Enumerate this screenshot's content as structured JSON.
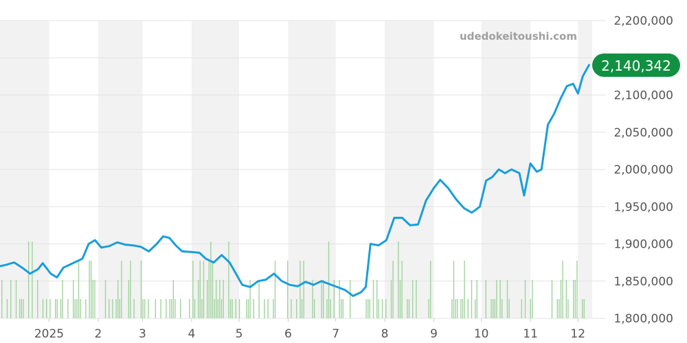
{
  "watermark": "udedokeitoushi.com",
  "colors": {
    "line": "#199ed9",
    "volume": "#9fd39c",
    "band": "#f2f2f2",
    "grid": "#e3e3e3",
    "badge": "#129042"
  },
  "chart_data": {
    "type": "line",
    "y_axis": {
      "range": [
        1800000,
        2200000
      ],
      "ticks": [
        1800000,
        1850000,
        1900000,
        1950000,
        2000000,
        2050000,
        2100000,
        2150000,
        2200000
      ],
      "tick_labels": [
        "1,800,000",
        "1,850,000",
        "1,900,000",
        "1,950,000",
        "2,000,000",
        "2,050,000",
        "2,100,000",
        "2,150,000",
        "2,200,000"
      ],
      "position": "right"
    },
    "x_axis": {
      "range": [
        "2024-12-01",
        "2025-12-10"
      ],
      "ticks": [
        "2025-01-01",
        "2025-02-01",
        "2025-03-01",
        "2025-04-01",
        "2025-05-01",
        "2025-06-01",
        "2025-07-01",
        "2025-08-01",
        "2025-09-01",
        "2025-10-01",
        "2025-11-01",
        "2025-12-01"
      ],
      "tick_labels": [
        "2025",
        "2",
        "3",
        "4",
        "5",
        "6",
        "7",
        "8",
        "9",
        "10",
        "11",
        "12"
      ]
    },
    "grid": true,
    "last_value_label": "2,140,342",
    "series": [
      {
        "kind": "line",
        "points": [
          [
            "2024-12-01",
            1870000
          ],
          [
            "2024-12-05",
            1872000
          ],
          [
            "2024-12-10",
            1875000
          ],
          [
            "2024-12-15",
            1868000
          ],
          [
            "2024-12-20",
            1860000
          ],
          [
            "2024-12-25",
            1866000
          ],
          [
            "2024-12-28",
            1874000
          ],
          [
            "2025-01-02",
            1860000
          ],
          [
            "2025-01-06",
            1855000
          ],
          [
            "2025-01-10",
            1868000
          ],
          [
            "2025-01-14",
            1872000
          ],
          [
            "2025-01-18",
            1876000
          ],
          [
            "2025-01-22",
            1880000
          ],
          [
            "2025-01-26",
            1900000
          ],
          [
            "2025-01-30",
            1905000
          ],
          [
            "2025-02-03",
            1895000
          ],
          [
            "2025-02-08",
            1897000
          ],
          [
            "2025-02-13",
            1902000
          ],
          [
            "2025-02-18",
            1899000
          ],
          [
            "2025-02-23",
            1898000
          ],
          [
            "2025-02-28",
            1896000
          ],
          [
            "2025-03-05",
            1890000
          ],
          [
            "2025-03-10",
            1900000
          ],
          [
            "2025-03-14",
            1910000
          ],
          [
            "2025-03-18",
            1908000
          ],
          [
            "2025-03-22",
            1898000
          ],
          [
            "2025-03-26",
            1890000
          ],
          [
            "2025-04-01",
            1889000
          ],
          [
            "2025-04-06",
            1888000
          ],
          [
            "2025-04-10",
            1880000
          ],
          [
            "2025-04-15",
            1875000
          ],
          [
            "2025-04-20",
            1885000
          ],
          [
            "2025-04-25",
            1875000
          ],
          [
            "2025-04-29",
            1860000
          ],
          [
            "2025-05-03",
            1845000
          ],
          [
            "2025-05-08",
            1842000
          ],
          [
            "2025-05-13",
            1850000
          ],
          [
            "2025-05-18",
            1852000
          ],
          [
            "2025-05-23",
            1860000
          ],
          [
            "2025-05-28",
            1850000
          ],
          [
            "2025-06-02",
            1845000
          ],
          [
            "2025-06-07",
            1843000
          ],
          [
            "2025-06-12",
            1849000
          ],
          [
            "2025-06-17",
            1845000
          ],
          [
            "2025-06-22",
            1850000
          ],
          [
            "2025-06-27",
            1846000
          ],
          [
            "2025-07-02",
            1842000
          ],
          [
            "2025-07-07",
            1838000
          ],
          [
            "2025-07-12",
            1830000
          ],
          [
            "2025-07-17",
            1835000
          ],
          [
            "2025-07-20",
            1842000
          ],
          [
            "2025-07-23",
            1900000
          ],
          [
            "2025-07-28",
            1898000
          ],
          [
            "2025-08-02",
            1905000
          ],
          [
            "2025-08-07",
            1935000
          ],
          [
            "2025-08-12",
            1935000
          ],
          [
            "2025-08-17",
            1925000
          ],
          [
            "2025-08-22",
            1926000
          ],
          [
            "2025-08-27",
            1958000
          ],
          [
            "2025-09-01",
            1975000
          ],
          [
            "2025-09-05",
            1986000
          ],
          [
            "2025-09-10",
            1975000
          ],
          [
            "2025-09-15",
            1960000
          ],
          [
            "2025-09-20",
            1948000
          ],
          [
            "2025-09-25",
            1942000
          ],
          [
            "2025-09-30",
            1950000
          ],
          [
            "2025-10-04",
            1985000
          ],
          [
            "2025-10-08",
            1990000
          ],
          [
            "2025-10-12",
            2000000
          ],
          [
            "2025-10-16",
            1995000
          ],
          [
            "2025-10-20",
            2000000
          ],
          [
            "2025-10-25",
            1995000
          ],
          [
            "2025-10-28",
            1965000
          ],
          [
            "2025-11-01",
            2008000
          ],
          [
            "2025-11-05",
            1997000
          ],
          [
            "2025-11-08",
            2000000
          ],
          [
            "2025-11-12",
            2060000
          ],
          [
            "2025-11-16",
            2075000
          ],
          [
            "2025-11-20",
            2095000
          ],
          [
            "2025-11-24",
            2112000
          ],
          [
            "2025-11-28",
            2115000
          ],
          [
            "2025-12-01",
            2102000
          ],
          [
            "2025-12-04",
            2125000
          ],
          [
            "2025-12-08",
            2140342
          ]
        ]
      },
      {
        "kind": "bar",
        "seed": 7,
        "note_scale": "relative"
      }
    ]
  }
}
